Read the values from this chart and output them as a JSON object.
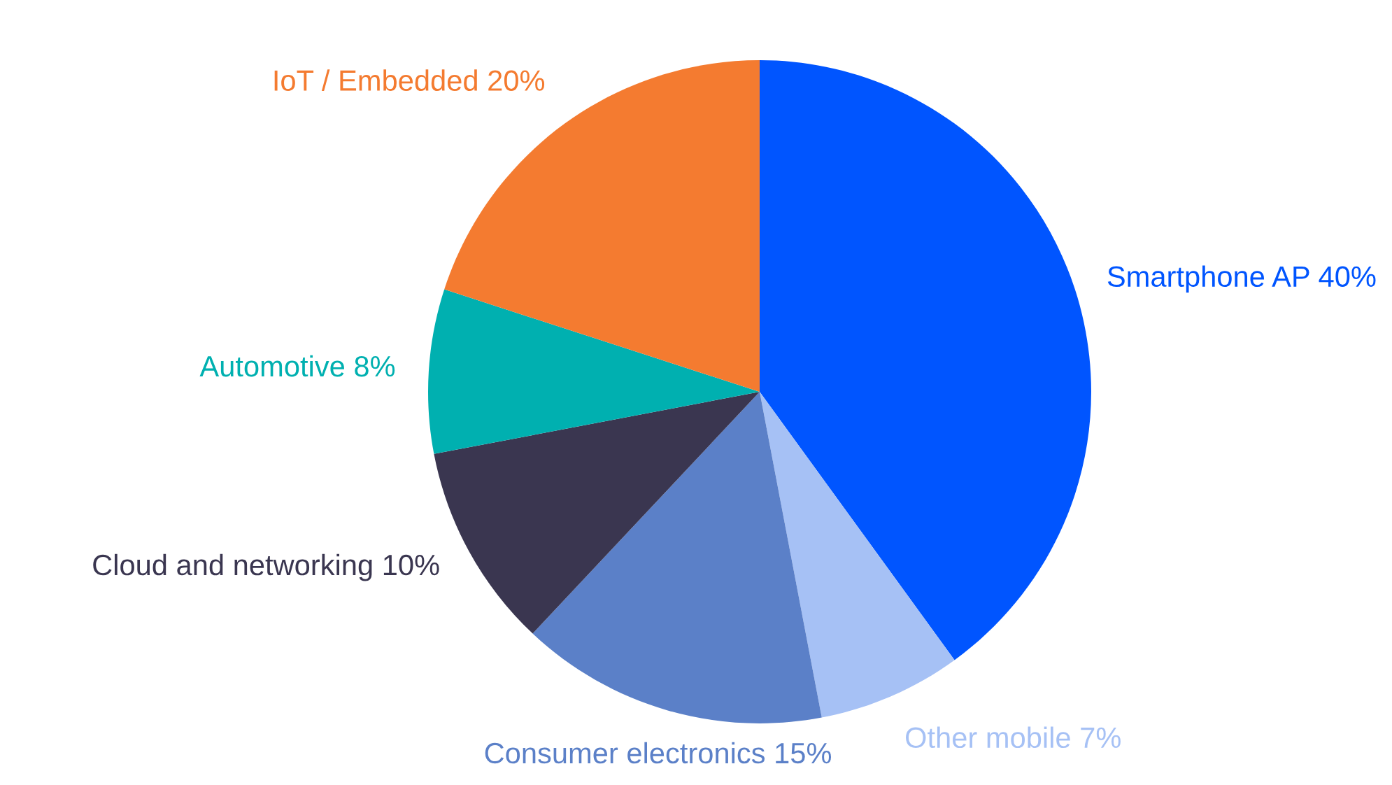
{
  "chart_data": {
    "type": "pie",
    "categories": [
      "Smartphone AP",
      "Other mobile",
      "Consumer electronics",
      "Cloud and networking",
      "Automotive",
      "IoT / Embedded"
    ],
    "values": [
      40,
      7,
      15,
      10,
      8,
      20
    ],
    "value_labels": [
      "40%",
      "7%",
      "15%",
      "10%",
      "8%",
      "20%"
    ],
    "colors": [
      "#0055ff",
      "#a6c1f5",
      "#5b80c8",
      "#3a3650",
      "#00b0b0",
      "#f47b30"
    ]
  }
}
